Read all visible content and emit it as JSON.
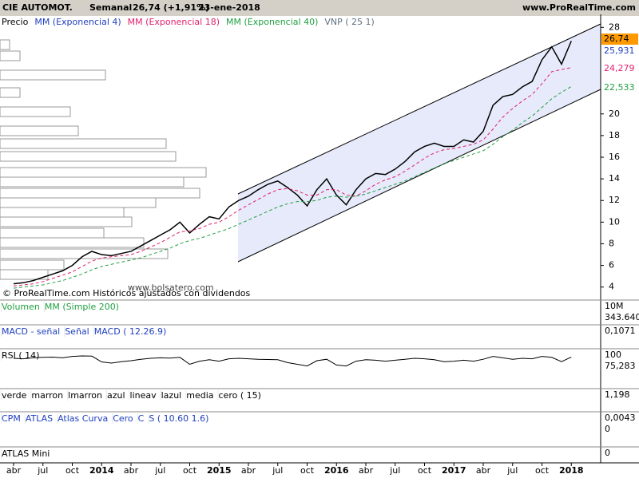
{
  "chart_data": {
    "type": "line",
    "title": "CIE AUTOMOT.",
    "period": "Semanal",
    "last_change": "26,74 (+1,91%)",
    "date": "23-ene-2018",
    "site": "www.ProRealTime.com",
    "legend": [
      "Precio",
      "MM (Exponencial 4)",
      "MM (Exponencial 18)",
      "MM (Exponencial 40)",
      "VNP ( 25 1)"
    ],
    "watermark": "www.bolsatero.com",
    "footnote": "© ProRealTime.com  Históricos ajustados con dividendos",
    "categories": [
      "abr",
      null,
      null,
      "jul",
      null,
      null,
      "oct",
      null,
      null,
      "2014",
      null,
      null,
      "abr",
      null,
      null,
      "jul",
      null,
      null,
      "oct",
      null,
      null,
      "2015",
      null,
      null,
      "abr",
      null,
      null,
      "jul",
      null,
      null,
      "oct",
      null,
      null,
      "2016",
      null,
      null,
      "abr",
      null,
      null,
      "jul",
      null,
      null,
      "oct",
      null,
      null,
      "2017",
      null,
      null,
      "abr",
      null,
      null,
      "jul",
      null,
      null,
      "oct",
      null,
      null,
      "2018"
    ],
    "series": [
      {
        "name": "Precio",
        "color": "#000000",
        "values": [
          4.3,
          4.4,
          4.6,
          4.9,
          5.2,
          5.5,
          6.0,
          6.8,
          7.3,
          7.0,
          6.9,
          7.1,
          7.3,
          7.8,
          8.3,
          8.8,
          9.3,
          10.0,
          9.0,
          9.8,
          10.5,
          10.3,
          11.4,
          12.0,
          12.4,
          13.0,
          13.5,
          13.8,
          13.2,
          12.5,
          11.5,
          13.0,
          14.0,
          12.5,
          11.6,
          13.0,
          14.0,
          14.5,
          14.4,
          14.9,
          15.6,
          16.5,
          17.0,
          17.3,
          17.0,
          17.0,
          17.6,
          17.4,
          18.4,
          20.8,
          21.6,
          21.8,
          22.5,
          23.0,
          25.0,
          26.2,
          24.6,
          26.74
        ]
      },
      {
        "name": "MM (Exponencial 18)",
        "color": "#e0206e",
        "values": [
          4.1,
          4.2,
          4.3,
          4.5,
          4.8,
          5.1,
          5.4,
          5.9,
          6.4,
          6.7,
          6.8,
          6.9,
          7.0,
          7.3,
          7.7,
          8.1,
          8.6,
          9.1,
          9.2,
          9.4,
          9.8,
          10.0,
          10.5,
          11.1,
          11.6,
          12.1,
          12.6,
          13.0,
          13.1,
          12.9,
          12.5,
          12.5,
          13.0,
          13.0,
          12.5,
          12.4,
          12.9,
          13.5,
          13.9,
          14.2,
          14.7,
          15.3,
          15.9,
          16.4,
          16.7,
          16.8,
          17.0,
          17.2,
          17.6,
          18.6,
          19.7,
          20.5,
          21.2,
          21.8,
          22.8,
          23.9,
          24.1,
          24.28
        ]
      },
      {
        "name": "MM (Exponencial 40)",
        "color": "#20a040",
        "values": [
          3.9,
          4.0,
          4.1,
          4.2,
          4.4,
          4.6,
          4.9,
          5.2,
          5.6,
          5.9,
          6.1,
          6.3,
          6.5,
          6.7,
          7.0,
          7.3,
          7.6,
          8.0,
          8.3,
          8.5,
          8.8,
          9.1,
          9.4,
          9.8,
          10.2,
          10.6,
          11.0,
          11.4,
          11.7,
          11.9,
          11.9,
          12.0,
          12.3,
          12.4,
          12.3,
          12.4,
          12.6,
          12.9,
          13.2,
          13.5,
          13.8,
          14.2,
          14.6,
          15.0,
          15.4,
          15.7,
          16.0,
          16.3,
          16.6,
          17.2,
          17.9,
          18.5,
          19.2,
          19.8,
          20.6,
          21.4,
          22.0,
          22.53
        ]
      }
    ],
    "value_labels": [
      "26,74",
      "25,931",
      "24,279",
      "22,533"
    ],
    "ylim": [
      2.8,
      29.2
    ],
    "yticks": [
      4,
      6,
      8,
      10,
      12,
      14,
      16,
      18,
      20,
      28
    ],
    "panels": [
      {
        "labels": [
          "Volumen",
          "MM (Simple 200)"
        ],
        "axis": [
          "10M",
          "343.640"
        ]
      },
      {
        "labels": [
          "MACD - señal",
          "Señal",
          "MACD ( 12.26.9)"
        ],
        "axis": [
          "0,1071"
        ]
      },
      {
        "labels": [
          "RSI ( 14)"
        ],
        "axis": [
          "100",
          "75,283"
        ],
        "values": [
          70,
          68,
          72,
          74,
          75,
          72,
          78,
          80,
          79,
          55,
          50,
          56,
          60,
          66,
          70,
          72,
          71,
          74,
          45,
          58,
          64,
          58,
          68,
          70,
          68,
          66,
          65,
          64,
          52,
          45,
          38,
          60,
          66,
          42,
          38,
          58,
          64,
          62,
          58,
          62,
          66,
          70,
          68,
          64,
          56,
          58,
          62,
          58,
          66,
          78,
          72,
          66,
          70,
          68,
          78,
          74,
          56,
          75.28
        ],
        "color": "#000000"
      },
      {
        "labels": [
          "verde",
          "marron",
          "lmarron",
          "azul",
          "lineav",
          "lazul",
          "media",
          "cero ( 15)"
        ],
        "axis": [
          "1,198"
        ]
      },
      {
        "labels": [
          "CPM",
          "ATLAS",
          "Atlas Curva",
          "Cero",
          "C",
          "S ( 10.60 1.6)"
        ],
        "axis": [
          "0,0043",
          "0"
        ]
      },
      {
        "labels": [
          "ATLAS Mini"
        ],
        "axis": [
          "0"
        ]
      }
    ]
  }
}
